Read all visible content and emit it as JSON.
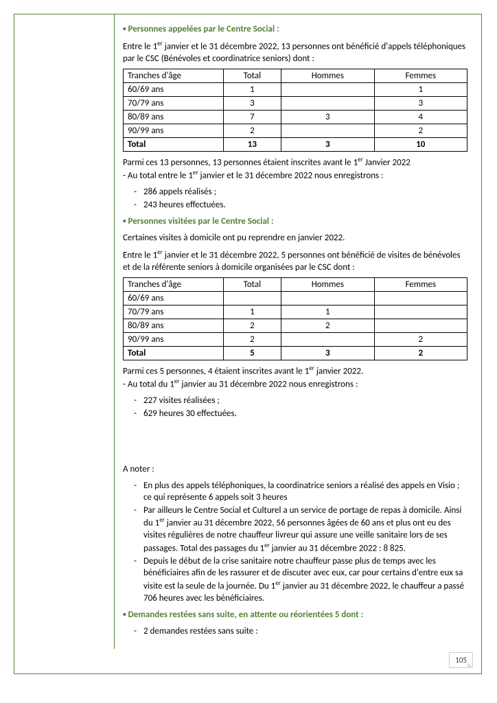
{
  "section1": {
    "title": "Personnes appelées par le Centre Social :",
    "intro_a": "Entre le 1",
    "intro_sup1": "er",
    "intro_b": " janvier et le 31 décembre 2022, 13 personnes ont bénéficié d'appels téléphoniques par le CSC (Bénévoles et coordinatrice seniors) dont :",
    "table": {
      "headers": [
        "Tranches d'âge",
        "Total",
        "Hommes",
        "Femmes"
      ],
      "rows": [
        [
          "60/69 ans",
          "1",
          "",
          "1"
        ],
        [
          "70/79 ans",
          "3",
          "",
          "3"
        ],
        [
          "80/89 ans",
          "7",
          "3",
          "4"
        ],
        [
          "90/99 ans",
          "2",
          "",
          "2"
        ]
      ],
      "total": [
        "Total",
        "13",
        "3",
        "10"
      ]
    },
    "after_a": "Parmi ces 13 personnes, 13 personnes étaient inscrites avant le 1",
    "after_sup": "er",
    "after_b": " Janvier 2022",
    "after_c": " - Au total entre le 1",
    "after_sup2": "er",
    "after_d": " janvier et le 31 décembre 2022 nous enregistrons :",
    "bullets": [
      "286 appels réalisés ;",
      "243 heures effectuées."
    ]
  },
  "section2": {
    "title": "Personnes visitées par le Centre Social :",
    "intro1": "Certaines visites à domicile ont pu reprendre en janvier 2022.",
    "intro_a": "Entre le 1",
    "intro_sup1": "er",
    "intro_b": " janvier et le 31 décembre 2022, 5 personnes ont bénéficié de visites de bénévoles et de la référente seniors à domicile organisées par le CSC dont :",
    "table": {
      "headers": [
        "Tranches d'âge",
        "Total",
        "Hommes",
        "Femmes"
      ],
      "rows": [
        [
          "60/69 ans",
          "",
          "",
          ""
        ],
        [
          "70/79 ans",
          "1",
          "1",
          ""
        ],
        [
          "80/89 ans",
          "2",
          "2",
          ""
        ],
        [
          "90/99 ans",
          "2",
          "",
          "2"
        ]
      ],
      "total": [
        "Total",
        "5",
        "3",
        "2"
      ]
    },
    "after_a": "Parmi ces 5 personnes, 4 étaient inscrites avant le 1",
    "after_sup": "er",
    "after_b": " janvier 2022.",
    "after_c": "- Au total du 1",
    "after_sup2": "er",
    "after_d": " janvier au 31 décembre 2022 nous enregistrons :",
    "bullets": [
      "227 visites réalisées ;",
      "629 heures 30 effectuées."
    ]
  },
  "notes": {
    "title": "A noter :",
    "items": [
      {
        "a": "En plus des appels téléphoniques, la coordinatrice seniors a réalisé des appels en Visio ; ce qui représente 6 appels soit 3 heures"
      },
      {
        "a": "Par ailleurs le Centre Social et Culturel a un service de portage de repas à domicile.  Ainsi du 1",
        "sup": "er",
        "b": " janvier au 31 décembre 2022, 56 personnes âgées de 60 ans et plus ont eu des visites régulières de notre chauffeur livreur qui assure une veille sanitaire lors de ses passages. Total des passages du 1",
        "sup2": "er",
        "c": " janvier au 31 décembre 2022 :  8 825."
      },
      {
        "a": "Depuis le début de la crise sanitaire notre chauffeur passe plus de temps avec les bénéficiaires afin de les rassurer et de discuter avec eux, car pour certains d'entre eux sa visite est la seule de la journée. Du 1",
        "sup": "er",
        "b": " janvier au 31 décembre 2022, le chauffeur a passé 706 heures avec les bénéficiaires."
      }
    ]
  },
  "section3": {
    "title": "Demandes restées sans suite, en attente ou réorientées 5 dont :",
    "bullets": [
      "2 demandes restées sans suite :"
    ]
  },
  "page_number": "105"
}
